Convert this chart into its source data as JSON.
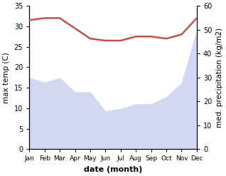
{
  "months": [
    "Jan",
    "Feb",
    "Mar",
    "Apr",
    "May",
    "Jun",
    "Jul",
    "Aug",
    "Sep",
    "Oct",
    "Nov",
    "Dec"
  ],
  "month_indices": [
    0,
    1,
    2,
    3,
    4,
    5,
    6,
    7,
    8,
    9,
    10,
    11
  ],
  "temp": [
    31.5,
    32.0,
    32.0,
    29.5,
    27.0,
    26.5,
    26.5,
    27.5,
    27.5,
    27.0,
    28.0,
    32.0
  ],
  "precip": [
    30.0,
    28.0,
    30.0,
    24.0,
    24.0,
    16.0,
    17.0,
    19.0,
    19.0,
    22.0,
    28.0,
    50.0
  ],
  "temp_color": "#c0524a",
  "precip_color": "#b0b8e8",
  "ylim_temp": [
    0,
    35
  ],
  "ylim_precip": [
    0,
    60
  ],
  "ylabel_left": "max temp (C)",
  "ylabel_right": "med. precipitation (kg/m2)",
  "xlabel": "date (month)",
  "bg_color": "#ffffff",
  "axes_color": "#000000",
  "temp_linewidth": 1.8,
  "ylabel_fontsize": 7.5,
  "xlabel_fontsize": 8,
  "tick_fontsize": 7,
  "xtick_fontsize": 6.5
}
